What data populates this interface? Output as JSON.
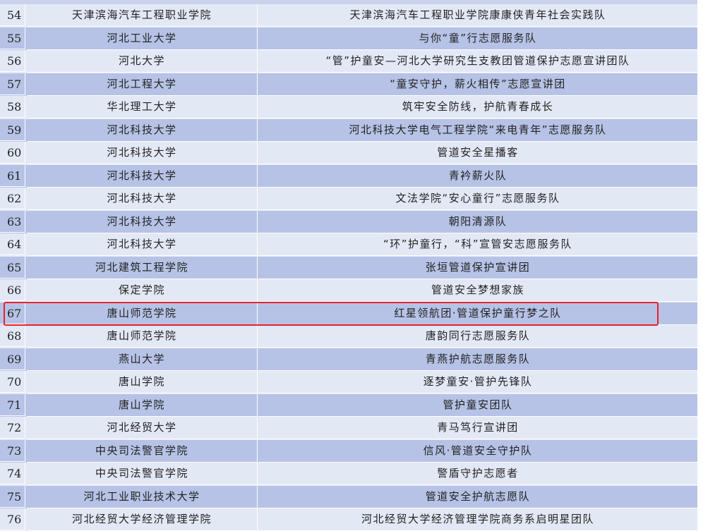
{
  "table": {
    "rows": [
      [
        54,
        "天津滨海汽车工程职业学院",
        "天津滨海汽车工程职业学院康康侠青年社会实践队"
      ],
      [
        55,
        "河北工业大学",
        "与你“童”行志愿服务队"
      ],
      [
        56,
        "河北大学",
        "“管”护童安—河北大学研究生支教团管道保护志愿宣讲团队"
      ],
      [
        57,
        "河北工程大学",
        "“童安守护，薪火相传”志愿宣讲团"
      ],
      [
        58,
        "华北理工大学",
        "筑牢安全防线，护航青春成长"
      ],
      [
        59,
        "河北科技大学",
        "河北科技大学电气工程学院“来电青年”志愿服务队"
      ],
      [
        60,
        "河北科技大学",
        "管道安全星播客"
      ],
      [
        61,
        "河北科技大学",
        "青衿薪火队"
      ],
      [
        62,
        "河北科技大学",
        "文法学院“安心童行”志愿服务队"
      ],
      [
        63,
        "河北科技大学",
        "朝阳清源队"
      ],
      [
        64,
        "河北科技大学",
        "“环”护童行，“科”宣管安志愿服务队"
      ],
      [
        65,
        "河北建筑工程学院",
        "张垣管道保护宣讲团"
      ],
      [
        66,
        "保定学院",
        "管道安全梦想家族"
      ],
      [
        67,
        "唐山师范学院",
        "红星领航团·管道保护童行梦之队"
      ],
      [
        68,
        "唐山师范学院",
        "唐韵同行志愿服务队"
      ],
      [
        69,
        "燕山大学",
        "青燕护航志愿服务队"
      ],
      [
        70,
        "唐山学院",
        "逐梦童安·管护先锋队"
      ],
      [
        71,
        "唐山学院",
        "管护童安团队"
      ],
      [
        72,
        "河北经贸大学",
        "青马笃行宣讲团"
      ],
      [
        73,
        "中央司法警官学院",
        "信风·管道安全守护队"
      ],
      [
        74,
        "中央司法警官学院",
        "警盾守护志愿者"
      ],
      [
        75,
        "河北工业职业技术大学",
        "管道安全护航志愿队"
      ],
      [
        76,
        "河北经贸大学经济管理学院",
        "河北经贸大学经济管理学院商务系启明星团队"
      ]
    ]
  }
}
